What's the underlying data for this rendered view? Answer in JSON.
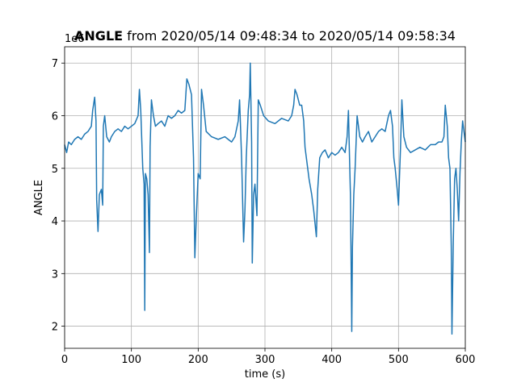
{
  "chart_data": {
    "type": "line",
    "title_bold": "ANGLE",
    "title": "from 2020/05/14 09:48:34 to 2020/05/14 09:58:34",
    "x_label": "time (s)",
    "y_label": "ANGLE",
    "y_offset_label": "1e6",
    "xlim": [
      0,
      600
    ],
    "ylim": [
      1.58,
      7.31
    ],
    "xticks": [
      0,
      100,
      200,
      300,
      400,
      500,
      600
    ],
    "yticks": [
      2,
      3,
      4,
      5,
      6,
      7
    ],
    "grid": true,
    "series": [
      {
        "name": "ANGLE",
        "color": "#1f77b4",
        "x": [
          0,
          3,
          6,
          10,
          15,
          20,
          25,
          30,
          35,
          40,
          42,
          45,
          47,
          48,
          50,
          52,
          55,
          57,
          58,
          60,
          63,
          67,
          70,
          75,
          80,
          85,
          90,
          95,
          100,
          105,
          110,
          112,
          114,
          117,
          119,
          120,
          121,
          123,
          125,
          127,
          128,
          130,
          133,
          136,
          140,
          145,
          150,
          155,
          160,
          165,
          170,
          175,
          180,
          183,
          186,
          190,
          193,
          195,
          197,
          200,
          203,
          205,
          208,
          212,
          220,
          230,
          240,
          250,
          255,
          260,
          262,
          265,
          268,
          270,
          272,
          275,
          277,
          278,
          280,
          281,
          283,
          285,
          288,
          290,
          293,
          298,
          305,
          315,
          325,
          335,
          340,
          343,
          345,
          348,
          352,
          355,
          358,
          360,
          363,
          366,
          370,
          373,
          377,
          379,
          382,
          386,
          390,
          395,
          400,
          405,
          410,
          415,
          420,
          423,
          425,
          427,
          428,
          430,
          431,
          433,
          435,
          438,
          442,
          446,
          450,
          455,
          460,
          465,
          470,
          475,
          480,
          485,
          488,
          491,
          493,
          495,
          498,
          500,
          503,
          505,
          508,
          512,
          518,
          525,
          532,
          540,
          548,
          555,
          560,
          565,
          568,
          570,
          573,
          575,
          577,
          579,
          580,
          582,
          584,
          586,
          588,
          590,
          592,
          594,
          596,
          598,
          600
        ],
        "values": [
          5.45,
          5.3,
          5.5,
          5.45,
          5.55,
          5.6,
          5.55,
          5.65,
          5.7,
          5.8,
          6.1,
          6.35,
          5.9,
          4.4,
          3.8,
          4.5,
          4.6,
          4.3,
          5.8,
          6.0,
          5.6,
          5.5,
          5.6,
          5.7,
          5.75,
          5.7,
          5.8,
          5.75,
          5.8,
          5.85,
          6.0,
          6.5,
          6.1,
          5.0,
          4.7,
          2.3,
          4.9,
          4.8,
          4.5,
          3.4,
          5.4,
          6.3,
          6.0,
          5.8,
          5.85,
          5.9,
          5.8,
          6.0,
          5.95,
          6.0,
          6.1,
          6.05,
          6.1,
          6.7,
          6.6,
          6.4,
          5.2,
          3.3,
          4.0,
          4.9,
          4.8,
          6.5,
          6.2,
          5.7,
          5.6,
          5.55,
          5.6,
          5.5,
          5.6,
          5.9,
          6.3,
          5.2,
          3.6,
          4.2,
          5.2,
          6.1,
          6.4,
          7.0,
          5.5,
          3.2,
          4.5,
          4.7,
          4.1,
          6.3,
          6.2,
          6.0,
          5.9,
          5.85,
          5.95,
          5.9,
          6.0,
          6.2,
          6.5,
          6.4,
          6.2,
          6.2,
          5.9,
          5.4,
          5.1,
          4.8,
          4.5,
          4.2,
          3.7,
          4.6,
          5.2,
          5.3,
          5.35,
          5.2,
          5.3,
          5.25,
          5.3,
          5.4,
          5.3,
          5.6,
          6.1,
          5.0,
          4.5,
          1.9,
          3.5,
          4.5,
          5.0,
          6.0,
          5.6,
          5.5,
          5.6,
          5.7,
          5.5,
          5.6,
          5.7,
          5.75,
          5.7,
          6.0,
          6.1,
          5.8,
          5.2,
          5.0,
          4.6,
          4.3,
          5.4,
          6.3,
          5.6,
          5.4,
          5.3,
          5.35,
          5.4,
          5.35,
          5.45,
          5.45,
          5.5,
          5.5,
          5.6,
          6.2,
          5.8,
          5.2,
          5.0,
          3.5,
          1.85,
          3.6,
          4.8,
          5.0,
          4.6,
          4.0,
          4.9,
          5.5,
          5.9,
          5.7,
          5.5
        ]
      }
    ]
  }
}
